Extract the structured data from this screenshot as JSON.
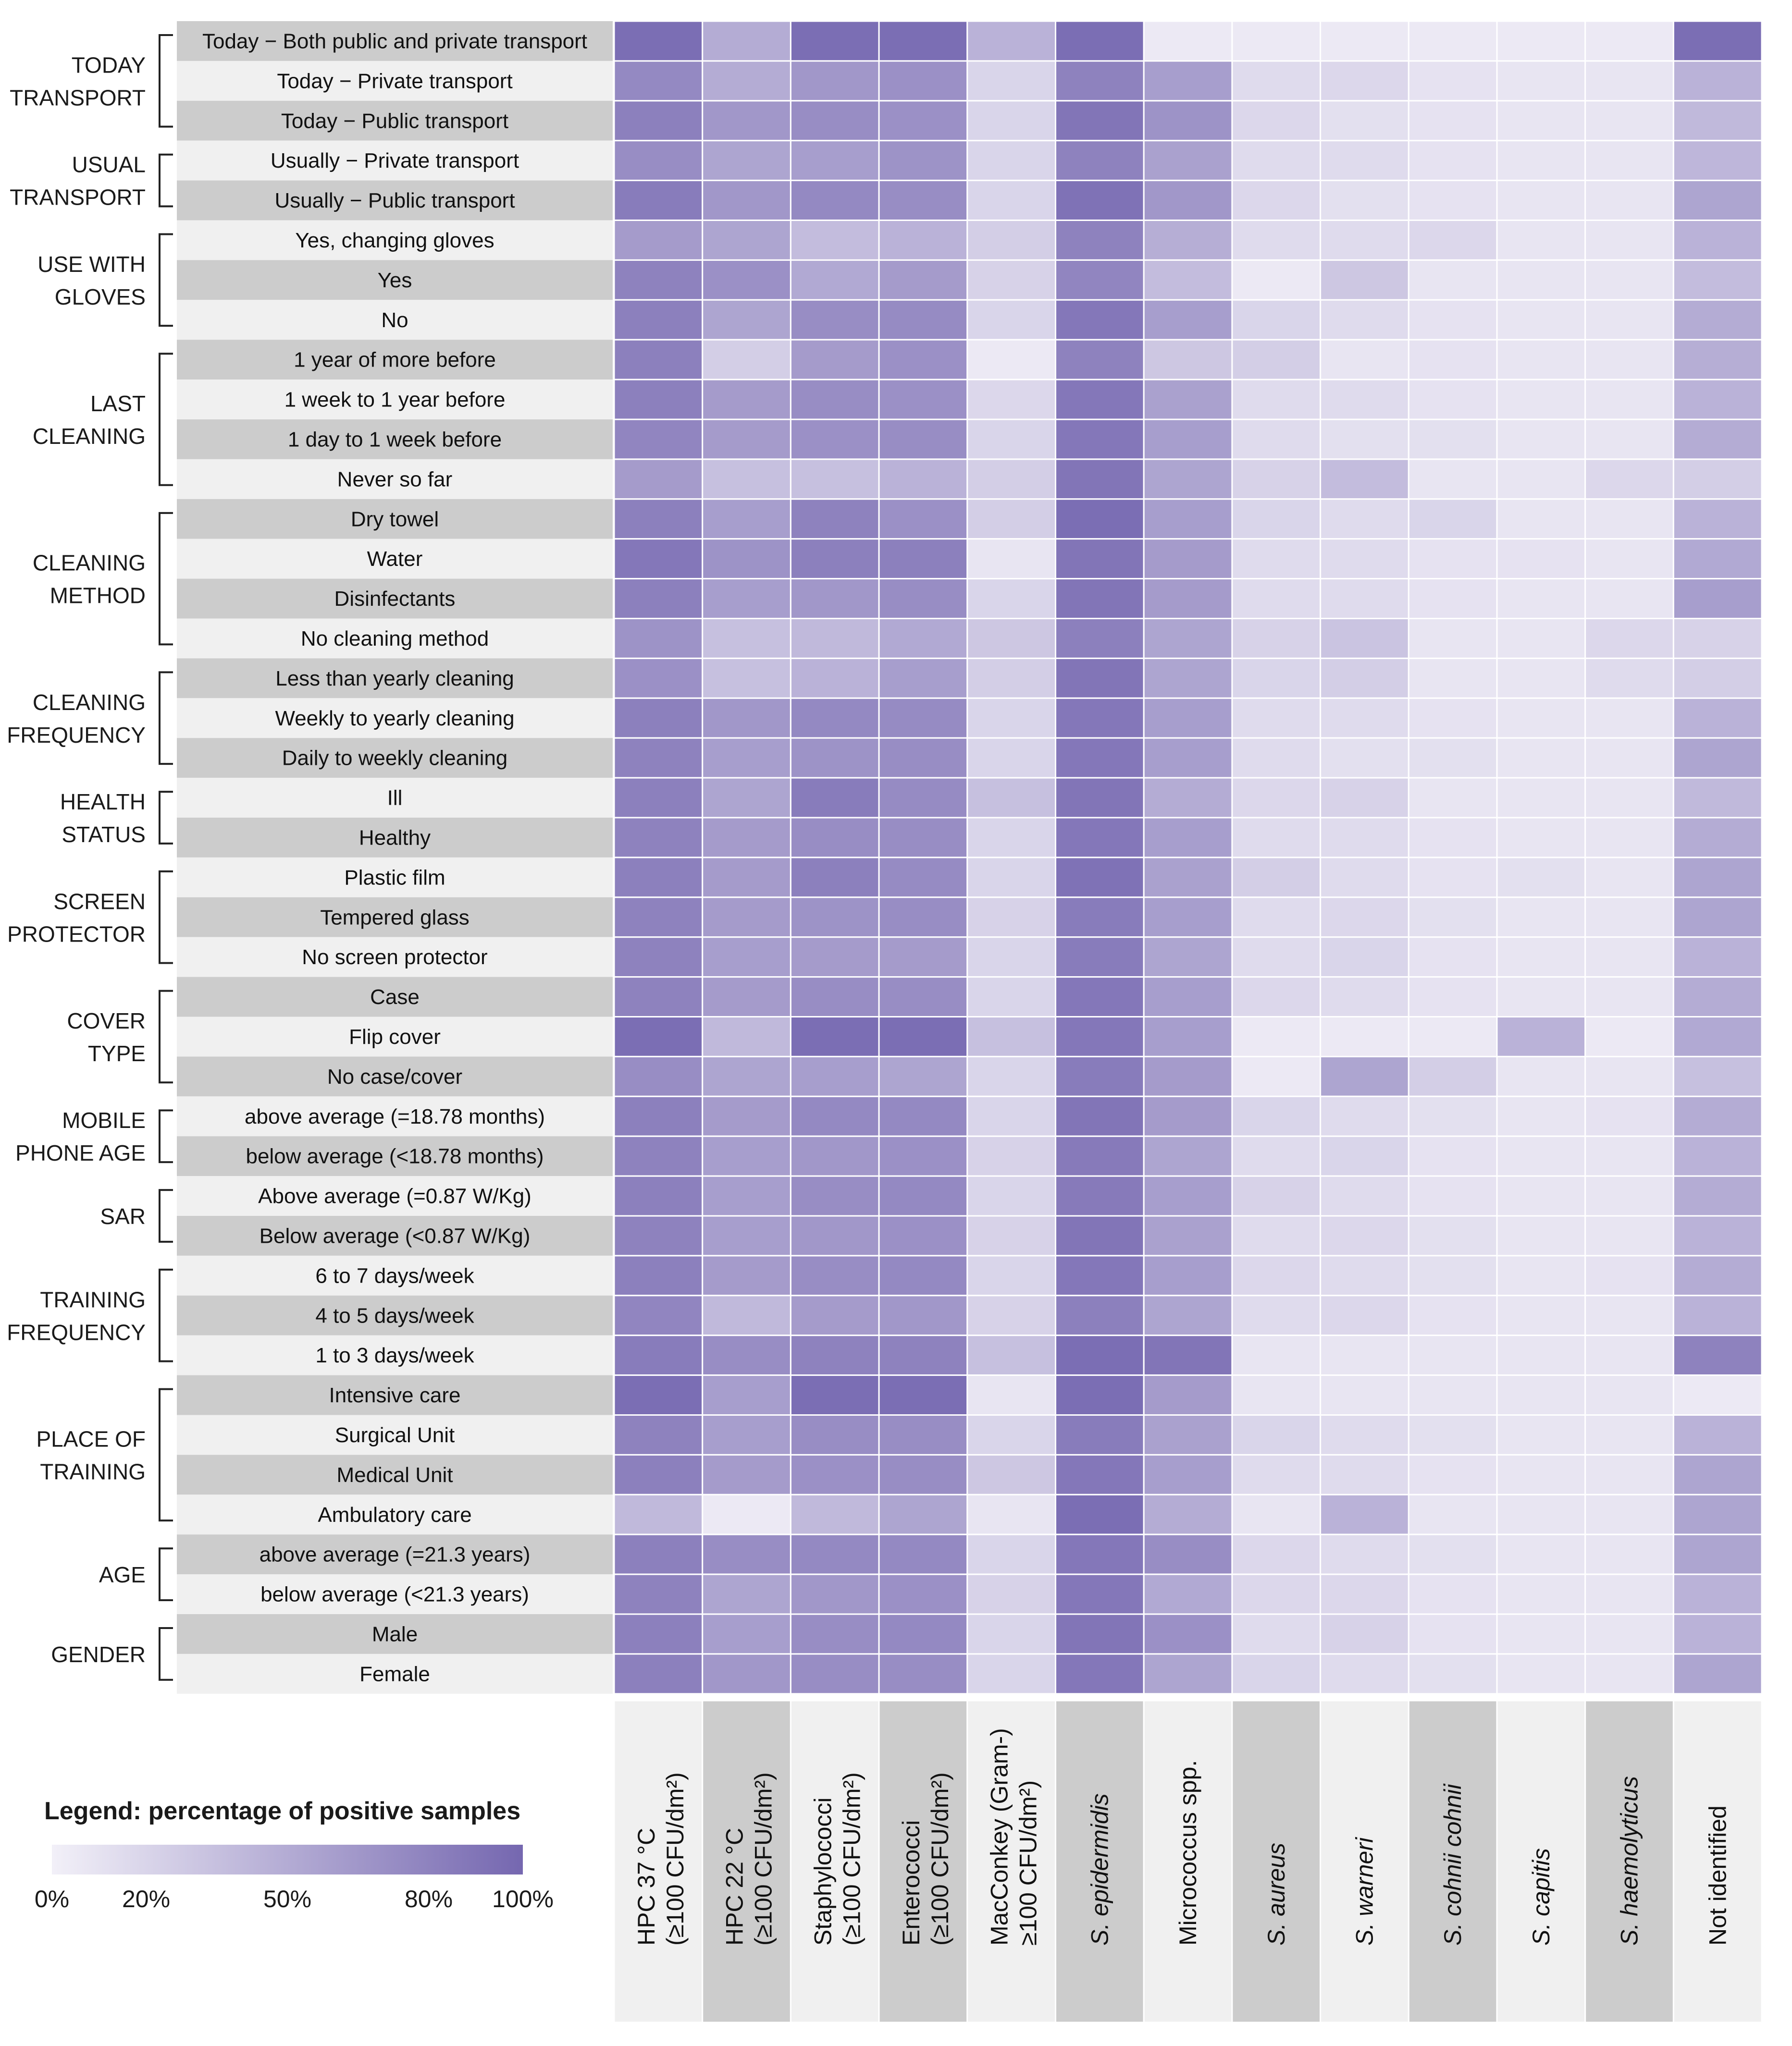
{
  "chart_data": {
    "type": "heatmap",
    "title": "",
    "value_unit": "percentage of positive samples",
    "colors": {
      "low": "#f2f0f8",
      "high": "#7567b0",
      "row_band_light": "#f0f0f0",
      "row_band_dark": "#cccccc",
      "bracket": "#222222"
    },
    "columns": [
      {
        "label": "HPC 37 °C",
        "sublabel": "(≥100 CFU/dm²)"
      },
      {
        "label": "HPC 22 °C",
        "sublabel": "(≥100 CFU/dm²)"
      },
      {
        "label": "Staphylococci",
        "sublabel": "(≥100 CFU/dm²)"
      },
      {
        "label": "Enterococci",
        "sublabel": "(≥100 CFU/dm²)"
      },
      {
        "label": "MacConkey (Gram-)",
        "sublabel": "≥100 CFU/dm²)"
      },
      {
        "label": "S. epidermidis",
        "sublabel": ""
      },
      {
        "label": "Micrococcus spp.",
        "sublabel": ""
      },
      {
        "label": "S. aureus",
        "sublabel": ""
      },
      {
        "label": "S. warneri",
        "sublabel": ""
      },
      {
        "label": "S. cohnii cohnii",
        "sublabel": ""
      },
      {
        "label": "S. capitis",
        "sublabel": ""
      },
      {
        "label": "S. haemolyticus",
        "sublabel": ""
      },
      {
        "label": "Not identified",
        "sublabel": ""
      }
    ],
    "groups": [
      {
        "label": [
          "TODAY",
          "TRANSPORT"
        ],
        "rows": [
          {
            "label": "Today − Both public and private transport",
            "values": [
              95,
              50,
              95,
              95,
              45,
              95,
              5,
              5,
              5,
              5,
              5,
              5,
              95
            ]
          },
          {
            "label": "Today − Private transport",
            "values": [
              75,
              50,
              65,
              70,
              20,
              80,
              60,
              15,
              18,
              10,
              8,
              8,
              45
            ]
          },
          {
            "label": "Today − Public transport",
            "values": [
              82,
              65,
              72,
              70,
              20,
              90,
              68,
              18,
              12,
              10,
              8,
              8,
              40
            ]
          }
        ]
      },
      {
        "label": [
          "USUAL",
          "TRANSPORT"
        ],
        "rows": [
          {
            "label": "Usually − Private transport",
            "values": [
              72,
              55,
              60,
              68,
              20,
              80,
              58,
              15,
              15,
              10,
              8,
              8,
              42
            ]
          },
          {
            "label": "Usually − Public transport",
            "values": [
              85,
              65,
              75,
              72,
              20,
              92,
              65,
              18,
              12,
              10,
              8,
              8,
              55
            ]
          }
        ]
      },
      {
        "label": [
          "USE WITH",
          "GLOVES"
        ],
        "rows": [
          {
            "label": "Yes, changing gloves",
            "values": [
              62,
              55,
              38,
              45,
              25,
              80,
              48,
              15,
              15,
              18,
              8,
              8,
              45
            ]
          },
          {
            "label": "Yes",
            "values": [
              80,
              70,
              52,
              62,
              22,
              78,
              38,
              5,
              30,
              8,
              8,
              8,
              38
            ]
          },
          {
            "label": "No",
            "values": [
              82,
              55,
              72,
              74,
              20,
              88,
              60,
              20,
              15,
              10,
              8,
              8,
              50
            ]
          }
        ]
      },
      {
        "label": [
          "LAST",
          "CLEANING"
        ],
        "rows": [
          {
            "label": "1 year of more before",
            "values": [
              82,
              25,
              62,
              70,
              5,
              80,
              30,
              25,
              8,
              10,
              8,
              8,
              48
            ]
          },
          {
            "label": "1 week to 1 year before",
            "values": [
              82,
              62,
              72,
              70,
              18,
              88,
              58,
              15,
              15,
              10,
              8,
              8,
              45
            ]
          },
          {
            "label": "1 day to 1 week before",
            "values": [
              78,
              62,
              70,
              72,
              20,
              88,
              60,
              15,
              12,
              12,
              8,
              8,
              50
            ]
          },
          {
            "label": "Never so far",
            "values": [
              62,
              35,
              35,
              45,
              25,
              90,
              55,
              22,
              38,
              8,
              8,
              18,
              25
            ]
          }
        ]
      },
      {
        "label": [
          "CLEANING",
          "METHOD"
        ],
        "rows": [
          {
            "label": "Dry towel",
            "values": [
              82,
              60,
              80,
              70,
              25,
              95,
              60,
              20,
              15,
              20,
              8,
              8,
              45
            ]
          },
          {
            "label": "Water",
            "values": [
              88,
              68,
              82,
              82,
              8,
              90,
              62,
              15,
              15,
              10,
              10,
              8,
              52
            ]
          },
          {
            "label": "Disinfectants",
            "values": [
              82,
              60,
              65,
              72,
              20,
              90,
              62,
              15,
              15,
              10,
              8,
              8,
              60
            ]
          },
          {
            "label": "No cleaning method",
            "values": [
              68,
              35,
              40,
              52,
              30,
              82,
              55,
              22,
              32,
              8,
              8,
              18,
              22
            ]
          }
        ]
      },
      {
        "label": [
          "CLEANING",
          "FREQUENCY"
        ],
        "rows": [
          {
            "label": "Less than yearly cleaning",
            "values": [
              70,
              35,
              45,
              60,
              25,
              90,
              55,
              20,
              25,
              8,
              8,
              15,
              25
            ]
          },
          {
            "label": "Weekly to yearly cleaning",
            "values": [
              82,
              65,
              75,
              74,
              20,
              88,
              60,
              15,
              15,
              10,
              8,
              8,
              45
            ]
          },
          {
            "label": "Daily to weekly cleaning",
            "values": [
              80,
              60,
              68,
              72,
              20,
              88,
              60,
              15,
              12,
              12,
              8,
              8,
              55
            ]
          }
        ]
      },
      {
        "label": [
          "HEALTH",
          "STATUS"
        ],
        "rows": [
          {
            "label": "Ill",
            "values": [
              82,
              55,
              85,
              74,
              35,
              90,
              50,
              18,
              22,
              8,
              8,
              8,
              40
            ]
          },
          {
            "label": "Healthy",
            "values": [
              80,
              62,
              72,
              72,
              20,
              88,
              60,
              15,
              15,
              10,
              8,
              8,
              50
            ]
          }
        ]
      },
      {
        "label": [
          "SCREEN",
          "PROTECTOR"
        ],
        "rows": [
          {
            "label": "Plastic film",
            "values": [
              82,
              62,
              82,
              74,
              20,
              92,
              58,
              25,
              15,
              10,
              12,
              8,
              55
            ]
          },
          {
            "label": "Tempered glass",
            "values": [
              80,
              62,
              68,
              72,
              22,
              85,
              60,
              15,
              18,
              12,
              8,
              8,
              55
            ]
          },
          {
            "label": "No screen protector",
            "values": [
              80,
              60,
              62,
              62,
              20,
              85,
              55,
              15,
              20,
              10,
              8,
              8,
              45
            ]
          }
        ]
      },
      {
        "label": [
          "COVER",
          "TYPE"
        ],
        "rows": [
          {
            "label": "Case",
            "values": [
              80,
              62,
              72,
              72,
              20,
              88,
              60,
              18,
              15,
              10,
              8,
              8,
              50
            ]
          },
          {
            "label": "Flip cover",
            "values": [
              95,
              40,
              95,
              95,
              35,
              88,
              60,
              5,
              5,
              5,
              45,
              5,
              52
            ]
          },
          {
            "label": "No case/cover",
            "values": [
              72,
              55,
              60,
              55,
              20,
              85,
              62,
              5,
              55,
              25,
              8,
              8,
              35
            ]
          }
        ]
      },
      {
        "label": [
          "MOBILE",
          "PHONE AGE"
        ],
        "rows": [
          {
            "label": "above average (=18.78 months)",
            "values": [
              82,
              62,
              75,
              75,
              20,
              90,
              62,
              20,
              15,
              12,
              8,
              10,
              50
            ]
          },
          {
            "label": "below average (<18.78 months)",
            "values": [
              80,
              60,
              65,
              70,
              22,
              86,
              55,
              15,
              20,
              10,
              8,
              8,
              45
            ]
          }
        ]
      },
      {
        "label": [
          "SAR"
        ],
        "rows": [
          {
            "label": "Above average (=0.87 W/Kg)",
            "values": [
              82,
              60,
              72,
              75,
              20,
              86,
              60,
              22,
              15,
              10,
              8,
              8,
              50
            ]
          },
          {
            "label": "Below average (<0.87 W/Kg)",
            "values": [
              80,
              60,
              65,
              70,
              22,
              90,
              58,
              15,
              18,
              12,
              8,
              8,
              45
            ]
          }
        ]
      },
      {
        "label": [
          "TRAINING",
          "FREQUENCY"
        ],
        "rows": [
          {
            "label": "6 to 7 days/week",
            "values": [
              82,
              62,
              72,
              75,
              20,
              88,
              60,
              18,
              15,
              12,
              8,
              10,
              50
            ]
          },
          {
            "label": "4 to 5 days/week",
            "values": [
              78,
              40,
              62,
              65,
              22,
              82,
              55,
              15,
              18,
              10,
              8,
              8,
              45
            ]
          },
          {
            "label": "1 to 3 days/week",
            "values": [
              85,
              72,
              80,
              80,
              35,
              95,
              90,
              8,
              8,
              8,
              8,
              8,
              80
            ]
          }
        ]
      },
      {
        "label": [
          "PLACE OF",
          "TRAINING"
        ],
        "rows": [
          {
            "label": "Intensive care",
            "values": [
              95,
              60,
              95,
              95,
              8,
              95,
              62,
              8,
              8,
              8,
              8,
              8,
              5
            ]
          },
          {
            "label": "Surgical Unit",
            "values": [
              80,
              60,
              72,
              72,
              20,
              85,
              58,
              20,
              15,
              12,
              8,
              8,
              45
            ]
          },
          {
            "label": "Medical Unit",
            "values": [
              82,
              62,
              70,
              72,
              30,
              88,
              60,
              15,
              15,
              10,
              8,
              8,
              55
            ]
          },
          {
            "label": "Ambulatory care",
            "values": [
              40,
              5,
              40,
              55,
              8,
              95,
              50,
              8,
              45,
              8,
              8,
              8,
              55
            ]
          }
        ]
      },
      {
        "label": [
          "AGE"
        ],
        "rows": [
          {
            "label": "above average (=21.3 years)",
            "values": [
              82,
              72,
              75,
              75,
              20,
              88,
              72,
              18,
              15,
              12,
              8,
              8,
              55
            ]
          },
          {
            "label": "below average (<21.3 years)",
            "values": [
              80,
              55,
              65,
              70,
              22,
              88,
              52,
              18,
              18,
              10,
              8,
              8,
              45
            ]
          }
        ]
      },
      {
        "label": [
          "GENDER"
        ],
        "rows": [
          {
            "label": "Male",
            "values": [
              82,
              60,
              72,
              75,
              20,
              90,
              70,
              15,
              22,
              10,
              8,
              8,
              45
            ]
          },
          {
            "label": "Female",
            "values": [
              82,
              65,
              72,
              72,
              20,
              88,
              55,
              20,
              15,
              12,
              8,
              8,
              55
            ]
          }
        ]
      }
    ],
    "legend": {
      "title": "Legend: percentage of positive samples",
      "ticks": [
        {
          "label": "0%",
          "value": 0
        },
        {
          "label": "20%",
          "value": 20
        },
        {
          "label": "50%",
          "value": 50
        },
        {
          "label": "80%",
          "value": 80
        },
        {
          "label": "100%",
          "value": 100
        }
      ]
    }
  }
}
